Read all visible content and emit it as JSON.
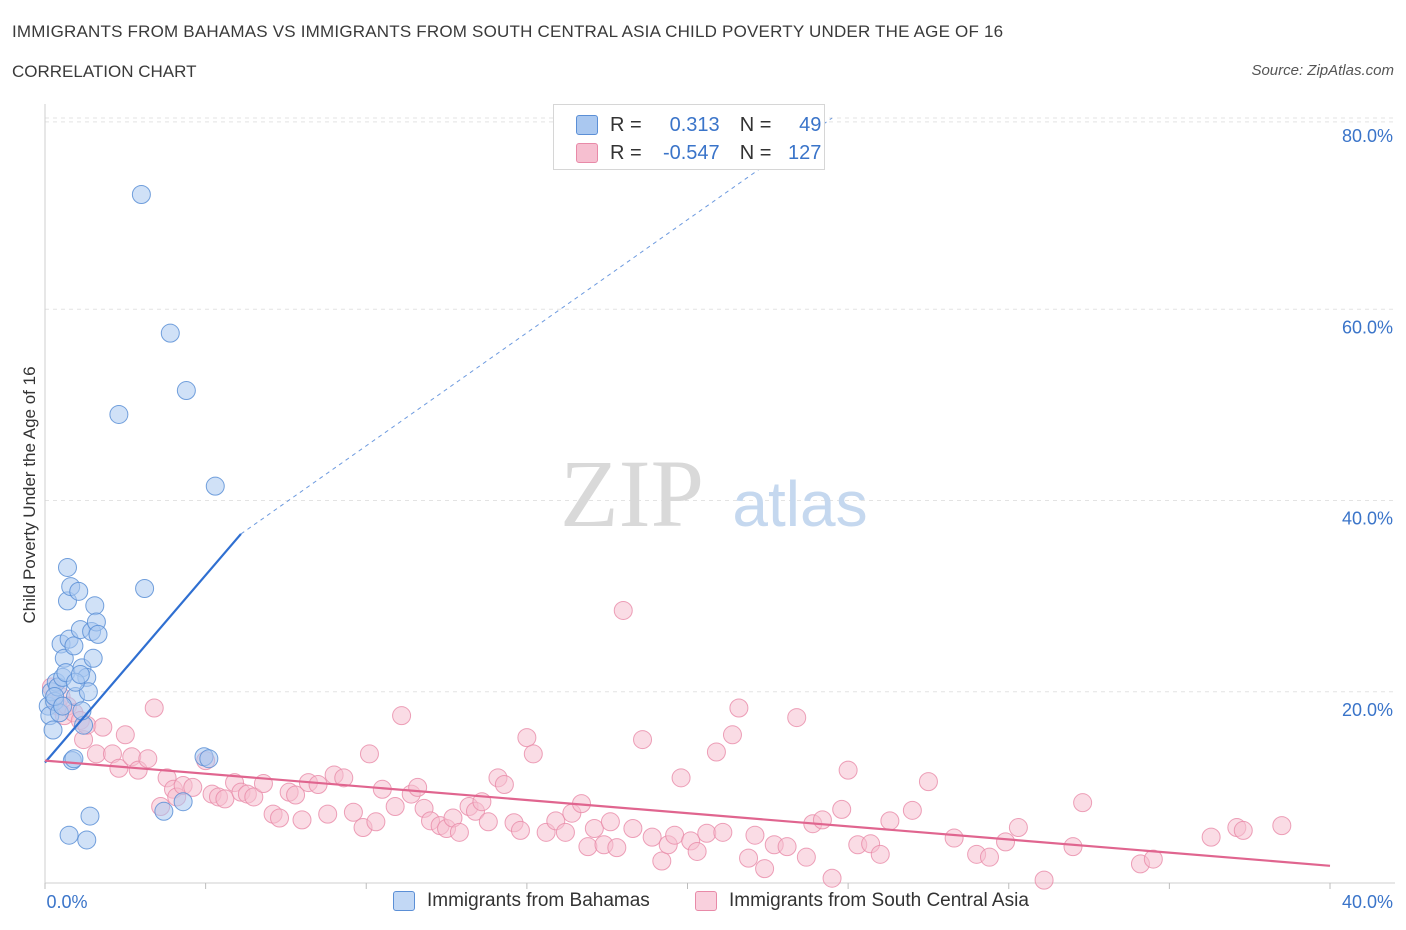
{
  "header": {
    "title": "IMMIGRANTS FROM BAHAMAS VS IMMIGRANTS FROM SOUTH CENTRAL ASIA CHILD POVERTY UNDER THE AGE OF 16",
    "subtitle": "CORRELATION CHART",
    "source": "Source: ZipAtlas.com"
  },
  "legend": {
    "r_label": "R =",
    "n_label": "N =",
    "series": [
      {
        "r": "0.313",
        "n": "49"
      },
      {
        "r": "-0.547",
        "n": "127"
      }
    ]
  },
  "watermark": {
    "zip": "ZIP",
    "atlas": "atlas"
  },
  "colors": {
    "blue_fill": "#aac8f0",
    "blue_stroke": "#5b8fd6",
    "blue_line": "#2f6fd1",
    "pink_fill": "#f6bfd0",
    "pink_stroke": "#e88aa8",
    "pink_line": "#e0658f",
    "axis_text": "#3a74c9"
  },
  "chart_data": {
    "type": "scatter",
    "title": "IMMIGRANTS FROM BAHAMAS VS IMMIGRANTS FROM SOUTH CENTRAL ASIA CHILD POVERTY UNDER THE AGE OF 16",
    "xlabel": "",
    "ylabel": "Child Poverty Under the Age of 16",
    "xlim": [
      0,
      40
    ],
    "ylim": [
      0,
      80
    ],
    "x_tick_labels": [
      "0.0%",
      "40.0%"
    ],
    "y_ticks": [
      20,
      40,
      60,
      80
    ],
    "y_tick_labels": [
      "20.0%",
      "40.0%",
      "60.0%",
      "80.0%"
    ],
    "grid": true,
    "series": [
      {
        "name": "Immigrants from Bahamas",
        "color": "#aac8f0",
        "trend": {
          "x": [
            0,
            6.1
          ],
          "y": [
            12.6,
            36.5
          ],
          "extended_to": [
            24.5,
            80
          ]
        },
        "points": [
          [
            0.1,
            18.5
          ],
          [
            0.15,
            17.5
          ],
          [
            0.2,
            20
          ],
          [
            0.25,
            16
          ],
          [
            0.3,
            19
          ],
          [
            0.35,
            21
          ],
          [
            0.4,
            20.5
          ],
          [
            0.45,
            17.8
          ],
          [
            0.5,
            25
          ],
          [
            0.55,
            21.5
          ],
          [
            0.6,
            23.5
          ],
          [
            0.65,
            22
          ],
          [
            0.7,
            29.5
          ],
          [
            0.75,
            25.5
          ],
          [
            0.7,
            33
          ],
          [
            0.8,
            31
          ],
          [
            0.85,
            12.8
          ],
          [
            0.9,
            13
          ],
          [
            0.9,
            24.8
          ],
          [
            0.95,
            19.5
          ],
          [
            1.05,
            30.5
          ],
          [
            1.1,
            26.5
          ],
          [
            1.15,
            22.5
          ],
          [
            1.2,
            16.5
          ],
          [
            1.15,
            18
          ],
          [
            1.3,
            21.5
          ],
          [
            1.35,
            20
          ],
          [
            1.4,
            7
          ],
          [
            1.45,
            26.3
          ],
          [
            1.5,
            23.5
          ],
          [
            1.55,
            29
          ],
          [
            1.6,
            27.3
          ],
          [
            1.65,
            26
          ],
          [
            0.75,
            5
          ],
          [
            1.3,
            4.5
          ],
          [
            2.3,
            49
          ],
          [
            3.0,
            72
          ],
          [
            3.1,
            30.8
          ],
          [
            3.9,
            57.5
          ],
          [
            3.7,
            7.5
          ],
          [
            4.4,
            51.5
          ],
          [
            4.3,
            8.5
          ],
          [
            4.95,
            13.2
          ],
          [
            5.1,
            13
          ],
          [
            5.3,
            41.5
          ],
          [
            0.3,
            19.5
          ],
          [
            0.55,
            18.5
          ],
          [
            0.95,
            21
          ],
          [
            1.1,
            21.8
          ]
        ]
      },
      {
        "name": "Immigrants from South Central Asia",
        "color": "#f6bfd0",
        "trend": {
          "x": [
            0,
            40
          ],
          "y": [
            12.8,
            1.8
          ]
        },
        "points": [
          [
            0.2,
            20.5
          ],
          [
            0.4,
            18.5
          ],
          [
            0.5,
            19.5
          ],
          [
            0.6,
            17.5
          ],
          [
            0.7,
            18.5
          ],
          [
            0.9,
            17.8
          ],
          [
            1.1,
            17
          ],
          [
            1.2,
            15
          ],
          [
            1.3,
            16.5
          ],
          [
            1.6,
            13.5
          ],
          [
            1.8,
            16.3
          ],
          [
            2.1,
            13.5
          ],
          [
            2.3,
            12
          ],
          [
            2.5,
            15.5
          ],
          [
            2.7,
            13.2
          ],
          [
            2.9,
            11.8
          ],
          [
            3.2,
            13
          ],
          [
            3.4,
            18.3
          ],
          [
            3.6,
            8
          ],
          [
            3.8,
            11
          ],
          [
            4.0,
            9.8
          ],
          [
            4.1,
            9
          ],
          [
            4.3,
            10.2
          ],
          [
            4.6,
            10
          ],
          [
            5.0,
            12.8
          ],
          [
            5.2,
            9.3
          ],
          [
            5.4,
            9
          ],
          [
            5.6,
            8.8
          ],
          [
            5.9,
            10.5
          ],
          [
            6.1,
            9.5
          ],
          [
            6.3,
            9.3
          ],
          [
            6.5,
            9
          ],
          [
            6.8,
            10.4
          ],
          [
            7.1,
            7.2
          ],
          [
            7.3,
            6.8
          ],
          [
            7.6,
            9.5
          ],
          [
            7.8,
            9.2
          ],
          [
            8.0,
            6.6
          ],
          [
            8.2,
            10.5
          ],
          [
            8.5,
            10.3
          ],
          [
            8.8,
            7.2
          ],
          [
            9.0,
            11.3
          ],
          [
            9.3,
            11
          ],
          [
            9.6,
            7.4
          ],
          [
            9.9,
            5.8
          ],
          [
            10.1,
            13.5
          ],
          [
            10.3,
            6.4
          ],
          [
            10.5,
            9.8
          ],
          [
            10.9,
            8
          ],
          [
            11.1,
            17.5
          ],
          [
            11.4,
            9.3
          ],
          [
            11.6,
            10
          ],
          [
            11.8,
            7.8
          ],
          [
            12.0,
            6.5
          ],
          [
            12.3,
            6
          ],
          [
            12.5,
            5.7
          ],
          [
            12.7,
            6.8
          ],
          [
            12.9,
            5.3
          ],
          [
            13.2,
            8
          ],
          [
            13.4,
            7.5
          ],
          [
            13.6,
            8.5
          ],
          [
            13.8,
            6.4
          ],
          [
            14.1,
            11
          ],
          [
            14.3,
            10.3
          ],
          [
            14.6,
            6.3
          ],
          [
            14.8,
            5.5
          ],
          [
            15.0,
            15.2
          ],
          [
            15.2,
            13.5
          ],
          [
            15.6,
            5.3
          ],
          [
            15.9,
            6.5
          ],
          [
            16.2,
            5.3
          ],
          [
            16.4,
            7.3
          ],
          [
            16.7,
            8.3
          ],
          [
            16.9,
            3.8
          ],
          [
            17.1,
            5.7
          ],
          [
            17.4,
            4
          ],
          [
            17.6,
            6.4
          ],
          [
            17.8,
            3.7
          ],
          [
            18.0,
            28.5
          ],
          [
            18.3,
            5.7
          ],
          [
            18.6,
            15
          ],
          [
            18.9,
            4.8
          ],
          [
            19.2,
            2.3
          ],
          [
            19.4,
            4
          ],
          [
            19.6,
            5
          ],
          [
            19.8,
            11
          ],
          [
            20.1,
            4.4
          ],
          [
            20.3,
            3.3
          ],
          [
            20.6,
            5.2
          ],
          [
            20.9,
            13.7
          ],
          [
            21.1,
            5.3
          ],
          [
            21.4,
            15.5
          ],
          [
            21.6,
            18.3
          ],
          [
            21.9,
            2.6
          ],
          [
            22.1,
            5
          ],
          [
            22.4,
            1.5
          ],
          [
            22.7,
            4
          ],
          [
            23.1,
            3.8
          ],
          [
            23.4,
            17.3
          ],
          [
            23.7,
            2.7
          ],
          [
            23.9,
            6.2
          ],
          [
            24.2,
            6.6
          ],
          [
            24.5,
            0.5
          ],
          [
            24.8,
            7.7
          ],
          [
            25.0,
            11.8
          ],
          [
            25.3,
            4
          ],
          [
            25.7,
            4.1
          ],
          [
            26.0,
            3
          ],
          [
            26.3,
            6.5
          ],
          [
            27.0,
            7.6
          ],
          [
            27.5,
            10.6
          ],
          [
            28.3,
            4.7
          ],
          [
            29.0,
            3
          ],
          [
            29.4,
            2.7
          ],
          [
            29.9,
            4.3
          ],
          [
            30.3,
            5.8
          ],
          [
            31.1,
            0.3
          ],
          [
            32.0,
            3.8
          ],
          [
            32.3,
            8.4
          ],
          [
            34.1,
            2
          ],
          [
            34.5,
            2.5
          ],
          [
            36.3,
            4.8
          ],
          [
            37.1,
            5.8
          ],
          [
            37.3,
            5.5
          ],
          [
            38.5,
            6
          ]
        ]
      }
    ]
  },
  "bottom_legend": [
    {
      "label": "Immigrants from Bahamas"
    },
    {
      "label": "Immigrants from South Central Asia"
    }
  ]
}
